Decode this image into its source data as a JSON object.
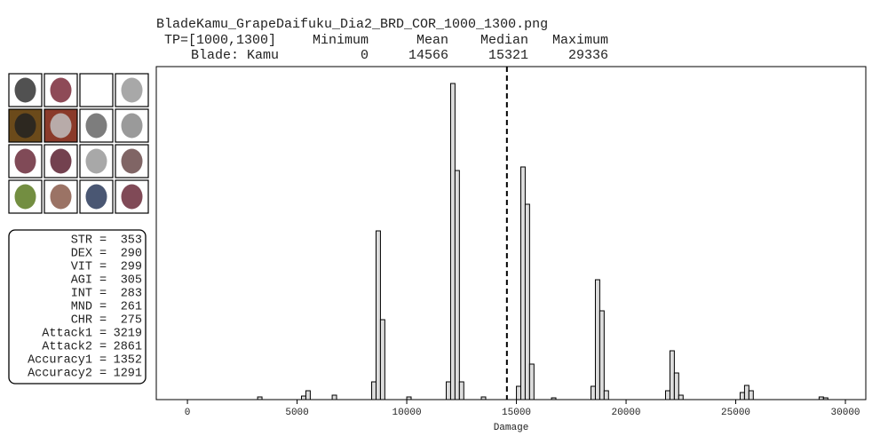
{
  "chart_data": {
    "type": "histogram",
    "title": "BladeKamu_GrapeDaifuku_Dia2_BRD_COR_1000_1300.png",
    "stats_header": {
      "label": "TP=[1000,1300]",
      "columns": [
        "Minimum",
        "Mean",
        "Median",
        "Maximum"
      ]
    },
    "stats_row": {
      "label": "Blade: Kamu",
      "values": [
        0,
        14566,
        15321,
        29336
      ]
    },
    "xlabel": "Damage",
    "xlim": [
      -1420,
      30930
    ],
    "xticks": [
      0,
      5000,
      10000,
      15000,
      20000,
      25000,
      30000
    ],
    "ylim": [
      0,
      375
    ],
    "color": "#dddddd",
    "edge_color": "#000000",
    "mean_line_color": "#000000",
    "bins": [
      3000,
      3200,
      3400,
      3600,
      3800,
      4000,
      4200,
      4400,
      4600,
      4800,
      5000,
      5200,
      5400,
      5600,
      5800,
      6000,
      6200,
      6400,
      6600,
      6800,
      7000,
      7200,
      7400,
      7600,
      7800,
      8000,
      8200,
      8400,
      8600,
      8800,
      9000,
      9200,
      9400,
      9600,
      9800,
      10000,
      10200,
      10400,
      10600,
      10800,
      11000,
      11200,
      11400,
      11600,
      11800,
      12000,
      12200,
      12400,
      12600,
      12800,
      13000,
      13200,
      13400,
      13600,
      13800,
      14000,
      14200,
      14400,
      14600,
      14800,
      15000,
      15200,
      15400,
      15600,
      15800,
      16000,
      16200,
      16400,
      16600,
      16800,
      17000,
      17200,
      17400,
      17600,
      17800,
      18000,
      18200,
      18400,
      18600,
      18800,
      19000,
      19200,
      19400,
      19600,
      19800,
      20000,
      20200,
      20400,
      20600,
      20800,
      21000,
      21200,
      21400,
      21600,
      21800,
      22000,
      22200,
      22400,
      22600,
      22800,
      23000,
      23200,
      23400,
      23600,
      23800,
      24000,
      24200,
      24400,
      24600,
      24800,
      25000,
      25200,
      25400,
      25600,
      25800,
      26000,
      26200,
      26400,
      26600,
      26800,
      27000,
      27200,
      27400,
      27600,
      27800,
      28000,
      28200,
      28400,
      28600,
      28800,
      29000,
      29200,
      29400
    ],
    "values": [
      0,
      3,
      0,
      0,
      0,
      0,
      0,
      0,
      0,
      0,
      0,
      4,
      10,
      0,
      0,
      0,
      0,
      0,
      5,
      0,
      0,
      0,
      0,
      0,
      0,
      0,
      0,
      20,
      190,
      90,
      0,
      0,
      0,
      0,
      0,
      3,
      0,
      0,
      0,
      0,
      0,
      0,
      0,
      0,
      20,
      356,
      258,
      20,
      0,
      0,
      0,
      0,
      3,
      0,
      0,
      0,
      0,
      0,
      0,
      0,
      15,
      262,
      220,
      40,
      0,
      0,
      0,
      0,
      2,
      0,
      0,
      0,
      0,
      0,
      0,
      0,
      0,
      15,
      135,
      100,
      10,
      0,
      0,
      0,
      0,
      0,
      0,
      0,
      0,
      0,
      0,
      0,
      0,
      0,
      10,
      55,
      30,
      5,
      0,
      0,
      0,
      0,
      0,
      0,
      0,
      0,
      0,
      0,
      0,
      0,
      0,
      8,
      16,
      10,
      0,
      0,
      0,
      0,
      0,
      0,
      0,
      0,
      0,
      0,
      0,
      0,
      0,
      0,
      0,
      3,
      2,
      0
    ],
    "stats_separator": "=",
    "stats": [
      {
        "name": "STR",
        "value": 353
      },
      {
        "name": "DEX",
        "value": 290
      },
      {
        "name": "VIT",
        "value": 299
      },
      {
        "name": "AGI",
        "value": 305
      },
      {
        "name": "INT",
        "value": 283
      },
      {
        "name": "MND",
        "value": 261
      },
      {
        "name": "CHR",
        "value": 275
      },
      {
        "name": "Attack1",
        "value": 3219
      },
      {
        "name": "Attack2",
        "value": 2861
      },
      {
        "name": "Accuracy1",
        "value": 1352
      },
      {
        "name": "Accuracy2",
        "value": 1291
      }
    ]
  }
}
